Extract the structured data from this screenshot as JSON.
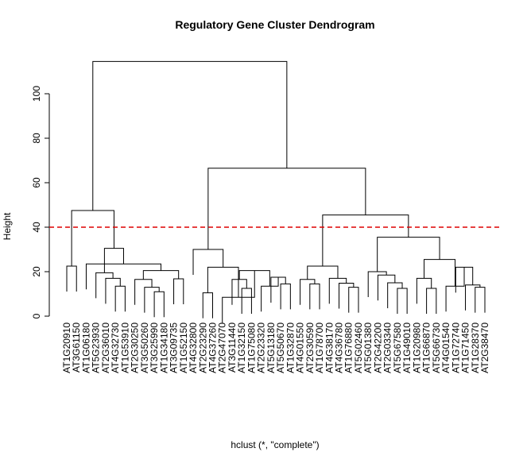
{
  "chart_data": {
    "type": "dendrogram",
    "title": "Regulatory Gene Cluster Dendrogram",
    "xlabel": "hclust (*, \"complete\")",
    "ylabel": "Height",
    "ylim": [
      0,
      120
    ],
    "yticks": [
      0,
      20,
      40,
      60,
      80,
      100
    ],
    "cut_height": 40,
    "cut_line_color": "#dd0000",
    "leaves": [
      "AT1G20910",
      "AT3G61150",
      "AT1G06180",
      "AT5G23930",
      "AT2G36010",
      "AT4G32730",
      "AT1G53910",
      "AT2G30250",
      "AT3G50260",
      "AT3G25990",
      "AT1G34180",
      "AT3G09735",
      "AT1G52150",
      "AT4G32800",
      "AT2G23290",
      "AT4G37260",
      "AT2G47070",
      "AT3G11440",
      "AT1G32150",
      "AT1G75080",
      "AT2G23320",
      "AT5G13180",
      "AT5G50670",
      "AT1G32870",
      "AT4G01550",
      "AT2G30590",
      "AT1G78700",
      "AT4G38170",
      "AT4G36780",
      "AT1G76880",
      "AT5G02460",
      "AT5G01380",
      "AT2G42200",
      "AT2G03340",
      "AT5G67580",
      "AT1G49010",
      "AT1G20980",
      "AT1G66870",
      "AT5G66730",
      "AT4G01540",
      "AT1G72740",
      "AT1G71450",
      "AT1G28370",
      "AT2G38470"
    ],
    "merges": [
      {
        "height": 22.5,
        "left": {
          "leaf": 0
        },
        "right": {
          "leaf": 1
        }
      },
      {
        "height": 13.5,
        "left": {
          "leaf": 5
        },
        "right": {
          "leaf": 6
        }
      },
      {
        "height": 17.0,
        "left": {
          "leaf": 4
        },
        "right": {
          "merge": 1
        }
      },
      {
        "height": 19.5,
        "left": {
          "leaf": 3
        },
        "right": {
          "merge": 2
        }
      },
      {
        "height": 11.0,
        "left": {
          "leaf": 9
        },
        "right": {
          "leaf": 10
        }
      },
      {
        "height": 13.0,
        "left": {
          "leaf": 8
        },
        "right": {
          "merge": 4
        }
      },
      {
        "height": 16.5,
        "left": {
          "leaf": 7
        },
        "right": {
          "merge": 5
        }
      },
      {
        "height": 16.8,
        "left": {
          "leaf": 11
        },
        "right": {
          "leaf": 12
        }
      },
      {
        "height": 20.5,
        "left": {
          "merge": 6
        },
        "right": {
          "merge": 7
        }
      },
      {
        "height": 23.5,
        "left": {
          "leaf": 2
        },
        "right": {
          "merge": 8
        }
      },
      {
        "height": 30.5,
        "left": {
          "merge": 3
        },
        "right": {
          "merge": 9
        }
      },
      {
        "height": 47.5,
        "left": {
          "merge": 0
        },
        "right": {
          "merge": 10
        }
      },
      {
        "height": 10.5,
        "left": {
          "leaf": 14
        },
        "right": {
          "leaf": 15
        }
      },
      {
        "height": 12.5,
        "left": {
          "leaf": 18
        },
        "right": {
          "leaf": 19
        }
      },
      {
        "height": 16.5,
        "left": {
          "leaf": 17
        },
        "right": {
          "merge": 13
        }
      },
      {
        "height": 14.5,
        "left": {
          "leaf": 22
        },
        "right": {
          "leaf": 23
        }
      },
      {
        "height": 17.5,
        "left": {
          "leaf": 21
        },
        "right": {
          "merge": 15
        }
      },
      {
        "height": 13.5,
        "left": {
          "leaf": 20
        },
        "right": {
          "merge": 16
        }
      },
      {
        "height": 20.5,
        "left": {
          "merge": 14
        },
        "right": {
          "merge": 17
        }
      },
      {
        "height": 8.5,
        "left": {
          "leaf": 16
        },
        "right": {
          "merge": 18
        }
      },
      {
        "height": 22.0,
        "left": {
          "merge": 12
        },
        "right": {
          "merge": 19
        }
      },
      {
        "height": 30.0,
        "left": {
          "leaf": 13
        },
        "right": {
          "merge": 20
        }
      },
      {
        "height": 14.5,
        "left": {
          "leaf": 25
        },
        "right": {
          "leaf": 26
        }
      },
      {
        "height": 16.5,
        "left": {
          "leaf": 24
        },
        "right": {
          "merge": 22
        }
      },
      {
        "height": 13.0,
        "left": {
          "leaf": 29
        },
        "right": {
          "leaf": 30
        }
      },
      {
        "height": 14.8,
        "left": {
          "leaf": 28
        },
        "right": {
          "merge": 24
        }
      },
      {
        "height": 17.0,
        "left": {
          "leaf": 27
        },
        "right": {
          "merge": 25
        }
      },
      {
        "height": 22.5,
        "left": {
          "merge": 23
        },
        "right": {
          "merge": 26
        }
      },
      {
        "height": 12.5,
        "left": {
          "leaf": 34
        },
        "right": {
          "leaf": 35
        }
      },
      {
        "height": 15.0,
        "left": {
          "leaf": 33
        },
        "right": {
          "merge": 28
        }
      },
      {
        "height": 18.5,
        "left": {
          "leaf": 32
        },
        "right": {
          "merge": 29
        }
      },
      {
        "height": 20.0,
        "left": {
          "leaf": 31
        },
        "right": {
          "merge": 30
        }
      },
      {
        "height": 12.5,
        "left": {
          "leaf": 37
        },
        "right": {
          "leaf": 38
        }
      },
      {
        "height": 17.0,
        "left": {
          "leaf": 36
        },
        "right": {
          "merge": 32
        }
      },
      {
        "height": 13.0,
        "left": {
          "leaf": 42
        },
        "right": {
          "leaf": 43
        }
      },
      {
        "height": 14.0,
        "left": {
          "leaf": 41
        },
        "right": {
          "merge": 34
        }
      },
      {
        "height": 22.0,
        "left": {
          "leaf": 40
        },
        "right": {
          "merge": 35
        }
      },
      {
        "height": 13.5,
        "left": {
          "leaf": 39
        },
        "right": {
          "merge": 36
        }
      },
      {
        "height": 25.5,
        "left": {
          "merge": 33
        },
        "right": {
          "merge": 37
        }
      },
      {
        "height": 35.5,
        "left": {
          "merge": 31
        },
        "right": {
          "merge": 38
        }
      },
      {
        "height": 45.5,
        "left": {
          "merge": 27
        },
        "right": {
          "merge": 39
        }
      },
      {
        "height": 66.5,
        "left": {
          "merge": 21
        },
        "right": {
          "merge": 40
        }
      },
      {
        "height": 114.5,
        "left": {
          "merge": 11
        },
        "right": {
          "merge": 41
        }
      }
    ]
  }
}
